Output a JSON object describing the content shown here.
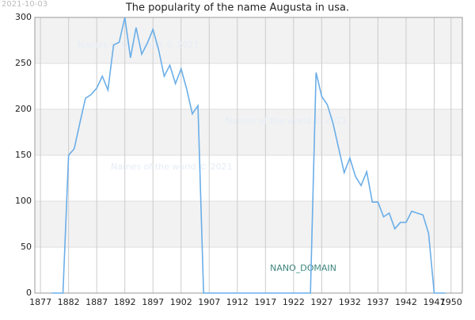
{
  "chart_data": {
    "type": "line",
    "title": "The popularity of the name Augusta in usa.",
    "date_stamp": "2021-10-03",
    "watermark": "NANO_DOMAIN",
    "faint_watermarks": [
      "Names of the world © 2021",
      "Names of the world © 2021",
      "Names of the world © 2021"
    ],
    "x": [
      1879,
      1880,
      1881,
      1882,
      1883,
      1884,
      1885,
      1886,
      1887,
      1888,
      1889,
      1890,
      1891,
      1892,
      1893,
      1894,
      1895,
      1896,
      1897,
      1898,
      1899,
      1900,
      1901,
      1902,
      1903,
      1904,
      1905,
      1906,
      1907,
      1908,
      1909,
      1910,
      1911,
      1912,
      1913,
      1914,
      1915,
      1916,
      1917,
      1918,
      1919,
      1920,
      1921,
      1922,
      1923,
      1924,
      1925,
      1926,
      1927,
      1928,
      1929,
      1930,
      1931,
      1932,
      1933,
      1934,
      1935,
      1936,
      1937,
      1938,
      1939,
      1940,
      1941,
      1942,
      1943,
      1944,
      1945,
      1946,
      1947,
      1948,
      1949
    ],
    "series": [
      {
        "name": "Augusta",
        "color": "#6aaee8",
        "values": [
          0,
          0,
          0,
          150,
          157,
          185,
          212,
          216,
          223,
          236,
          221,
          270,
          273,
          300,
          256,
          289,
          260,
          272,
          287,
          265,
          236,
          248,
          228,
          244,
          222,
          195,
          204,
          0,
          0,
          0,
          0,
          0,
          0,
          0,
          0,
          0,
          0,
          0,
          0,
          0,
          0,
          0,
          0,
          0,
          0,
          0,
          0,
          240,
          214,
          205,
          185,
          158,
          131,
          147,
          127,
          117,
          132,
          99,
          99,
          83,
          87,
          70,
          77,
          77,
          89,
          87,
          85,
          65,
          0,
          0,
          0
        ]
      }
    ],
    "xlim": [
      1876,
      1952
    ],
    "xticks": [
      1877,
      1882,
      1887,
      1892,
      1897,
      1902,
      1907,
      1912,
      1917,
      1922,
      1927,
      1932,
      1937,
      1942,
      1947,
      1950
    ],
    "ylim": [
      0,
      300
    ],
    "yticks": [
      0,
      50,
      100,
      150,
      200,
      250,
      300
    ],
    "grid": true
  }
}
